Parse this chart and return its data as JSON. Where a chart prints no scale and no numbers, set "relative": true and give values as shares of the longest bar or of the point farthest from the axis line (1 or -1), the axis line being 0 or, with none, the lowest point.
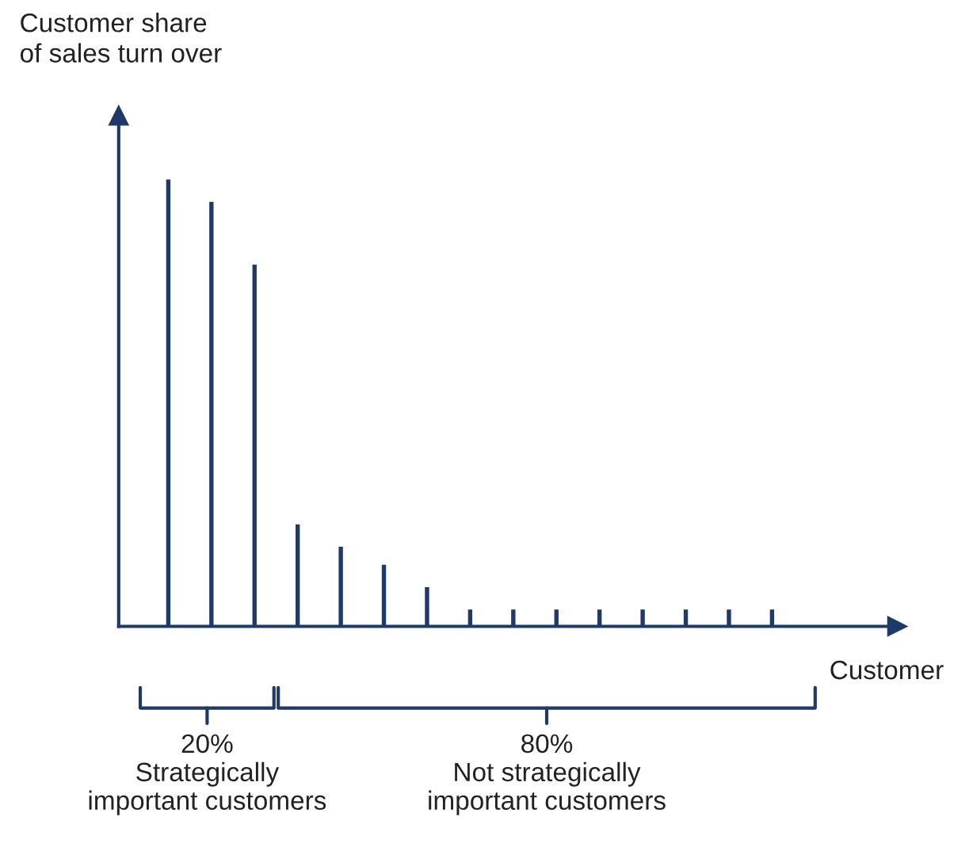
{
  "chart_data": {
    "type": "bar",
    "relative": true,
    "categories": [
      null,
      null,
      null,
      null,
      null,
      null,
      null,
      null,
      null,
      null,
      null,
      null,
      null,
      null,
      null
    ],
    "values": [
      1,
      0.95,
      0.81,
      0.23,
      0.18,
      0.14,
      0.09,
      0.04,
      0.04,
      0.04,
      0.04,
      0.04,
      0.04,
      0.04,
      0.04
    ],
    "color": "#1f3a68",
    "xlabel": "Customer",
    "ylabel": "Customer share\nof sales turn over",
    "annotations": [
      "20%\nStrategically\nimportant customers",
      "80%\nNot strategically\nimportant customers"
    ]
  }
}
